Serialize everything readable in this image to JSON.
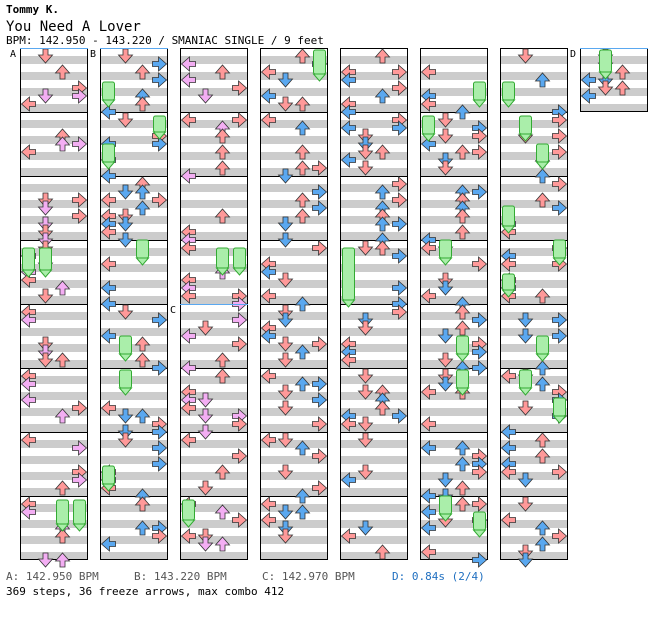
{
  "song": {
    "artist": "Tommy K.",
    "title": "You Need A Lover",
    "bpm_info": "BPM: 142.950 - 143.220 / SMANIAC SINGLE / 9 feet"
  },
  "colors": {
    "quarter": "#ff9999",
    "eighth": "#5aa8f0",
    "sixteenth": "#f3aef3",
    "freeze": "#aaeeaa",
    "freeze_border": "#33aa33",
    "stripe": "#cccccc",
    "marker_line": "#5aa8f0",
    "stop_text": "#1f6fc0"
  },
  "sections": [
    {
      "label": "A",
      "column": 0
    },
    {
      "label": "B",
      "column": 1
    },
    {
      "label": "C",
      "column": 2
    },
    {
      "label": "D",
      "column": 7
    }
  ],
  "footer": {
    "a": "A: 142.950 BPM",
    "b": "B: 143.220 BPM",
    "c": "C: 142.970 BPM",
    "d": "D: 0.84s (2/4)",
    "summary": "369 steps, 36 freeze arrows, max combo 412"
  }
}
